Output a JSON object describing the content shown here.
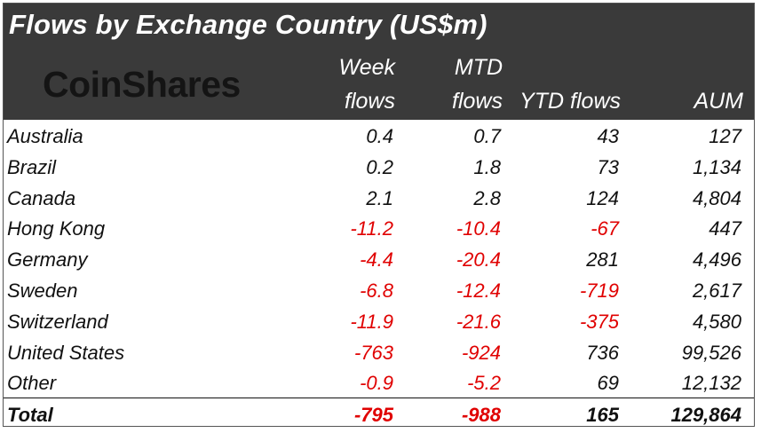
{
  "title": "Flows by Exchange Country (US$m)",
  "logo_text": "CoinShares",
  "columns": {
    "week_line1": "Week",
    "week_line2": "flows",
    "mtd_line1": "MTD",
    "mtd_line2": "flows",
    "ytd": "YTD flows",
    "aum": "AUM"
  },
  "colors": {
    "header_bg": "#3a3a3a",
    "negative": "#e00000"
  },
  "chart_data": {
    "type": "table",
    "title": "Flows by Exchange Country (US$m)",
    "headers": [
      "",
      "Week flows",
      "MTD flows",
      "YTD flows",
      "AUM"
    ],
    "rows": [
      [
        "Australia",
        "0.4",
        "0.7",
        "43",
        "127"
      ],
      [
        "Brazil",
        "0.2",
        "1.8",
        "73",
        "1,134"
      ],
      [
        "Canada",
        "2.1",
        "2.8",
        "124",
        "4,804"
      ],
      [
        "Hong Kong",
        "-11.2",
        "-10.4",
        "-67",
        "447"
      ],
      [
        "Germany",
        "-4.4",
        "-20.4",
        "281",
        "4,496"
      ],
      [
        "Sweden",
        "-6.8",
        "-12.4",
        "-719",
        "2,617"
      ],
      [
        "Switzerland",
        "-11.9",
        "-21.6",
        "-375",
        "4,580"
      ],
      [
        "United States",
        "-763",
        "-924",
        "736",
        "99,526"
      ],
      [
        "Other",
        "-0.9",
        "-5.2",
        "69",
        "12,132"
      ]
    ],
    "total": [
      "Total",
      "-795",
      "-988",
      "165",
      "129,864"
    ]
  }
}
